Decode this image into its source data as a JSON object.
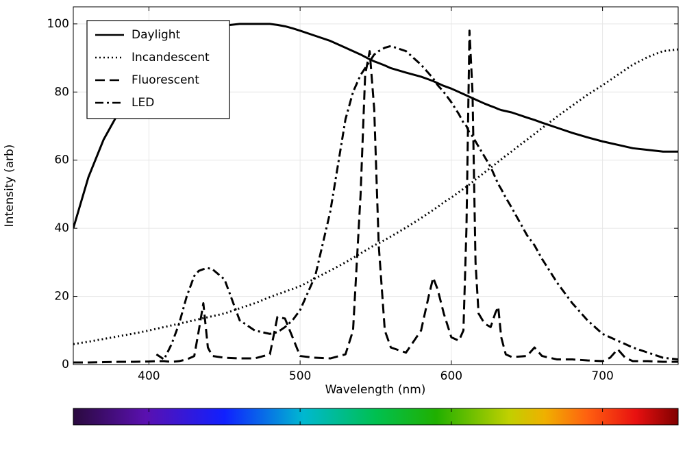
{
  "chart_data": {
    "type": "line",
    "x_label": "Wavelength (nm)",
    "y_label": "Intensity (arb)",
    "x": [
      350,
      360,
      370,
      380,
      390,
      400,
      405,
      410,
      415,
      420,
      425,
      430,
      433,
      436,
      439,
      442,
      450,
      460,
      470,
      480,
      485,
      490,
      495,
      500,
      510,
      520,
      530,
      535,
      540,
      543,
      546,
      549,
      552,
      556,
      560,
      570,
      580,
      585,
      588,
      591,
      595,
      600,
      605,
      608,
      610,
      612,
      614,
      616,
      618,
      622,
      626,
      629,
      631,
      633,
      636,
      640,
      650,
      655,
      660,
      670,
      680,
      690,
      700,
      705,
      710,
      715,
      720,
      730,
      740,
      750
    ],
    "series": [
      {
        "name": "Daylight",
        "color": "#000000",
        "dash": "solid",
        "values": [
          40,
          55,
          66,
          74,
          82,
          88,
          90,
          92,
          93.5,
          95,
          96,
          97,
          97.5,
          98,
          98.3,
          98.8,
          99.5,
          100,
          100,
          100,
          99.7,
          99.3,
          98.7,
          98,
          96.5,
          95,
          93,
          92,
          91,
          90.3,
          89.6,
          89,
          88.5,
          87.8,
          87,
          85.7,
          84.5,
          83.7,
          83.2,
          82.6,
          81.8,
          81,
          80,
          79.4,
          79,
          78.6,
          78.2,
          77.8,
          77.4,
          76.6,
          75.9,
          75.4,
          75,
          74.7,
          74.4,
          74,
          72.5,
          71.8,
          71,
          69.5,
          68,
          66.7,
          65.5,
          65,
          64.5,
          64,
          63.5,
          63,
          62.5,
          62.5
        ]
      },
      {
        "name": "Incandescent",
        "color": "#000000",
        "dash": "dotted",
        "values": [
          6,
          6.7,
          7.5,
          8.3,
          9.1,
          10,
          10.5,
          11,
          11.5,
          12,
          12.5,
          13,
          13.3,
          13.6,
          13.9,
          14.2,
          15,
          16.5,
          18,
          19.8,
          20.6,
          21.4,
          22.2,
          23,
          25.3,
          27.6,
          30,
          31.3,
          32.6,
          33.4,
          34.2,
          35,
          35.6,
          36.6,
          37.6,
          40.2,
          43,
          44.5,
          45.4,
          46.3,
          47.6,
          49,
          50.6,
          51.6,
          52.2,
          52.9,
          53.6,
          54.3,
          55,
          56.4,
          57.8,
          58.8,
          59.5,
          60.2,
          61.3,
          62.6,
          66,
          67.7,
          69.4,
          72.8,
          76,
          79.2,
          82,
          83.5,
          85,
          86.5,
          88,
          90.3,
          92,
          92.5
        ]
      },
      {
        "name": "Fluorescent",
        "color": "#000000",
        "dash": "dashed",
        "values": [
          0.6,
          0.6,
          0.7,
          0.8,
          0.8,
          0.9,
          1,
          1,
          0.8,
          1,
          1.5,
          2.5,
          10,
          18,
          5,
          2.5,
          2,
          1.8,
          1.8,
          3,
          14,
          13.5,
          8,
          2.5,
          2,
          1.8,
          3,
          10,
          50,
          85,
          92,
          75,
          35,
          10,
          5,
          3.5,
          10,
          20,
          25.5,
          22,
          15,
          8,
          7,
          10,
          40,
          98,
          80,
          30,
          15,
          12,
          11,
          15,
          17,
          8,
          3,
          2.2,
          2.5,
          5,
          2.5,
          1.5,
          1.5,
          1.2,
          1,
          2,
          4.5,
          2,
          1,
          1,
          0.8,
          0.8
        ]
      },
      {
        "name": "LED",
        "color": "#000000",
        "dash": "dashdot",
        "values": [
          null,
          null,
          null,
          null,
          null,
          null,
          3,
          1.5,
          6,
          12,
          20,
          26,
          27.5,
          28,
          28.3,
          28,
          25,
          13,
          10,
          9,
          9.5,
          11,
          13,
          16,
          26,
          45,
          72,
          80,
          85,
          87,
          89,
          91,
          92,
          93,
          93.5,
          92,
          88,
          85.5,
          84,
          82,
          80,
          77,
          73.5,
          71,
          70,
          68,
          67,
          65.5,
          64,
          61,
          58,
          55,
          53,
          51.5,
          49,
          46,
          38,
          35,
          31,
          24,
          18,
          13,
          9,
          8,
          7,
          6,
          5,
          3.5,
          2,
          1.5
        ]
      }
    ],
    "xlim": [
      350,
      750
    ],
    "xticks": [
      400,
      500,
      600,
      700
    ],
    "ylim": [
      0,
      105
    ],
    "yticks": [
      0,
      20,
      40,
      60,
      80,
      100
    ],
    "grid": true,
    "legend": "upper-left",
    "colorbar": true
  }
}
